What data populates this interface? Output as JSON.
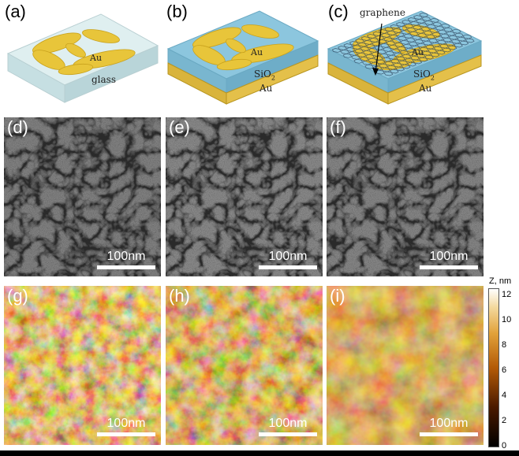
{
  "panels": {
    "a": {
      "label": "(a)",
      "substrate_label": "glass",
      "particle_label": "Au"
    },
    "b": {
      "label": "(b)",
      "particle_label": "Au",
      "layer1_label": "SiO",
      "layer1_sub": "2",
      "layer2_label": "Au"
    },
    "c": {
      "label": "(c)",
      "top_label": "graphene",
      "particle_label": "Au",
      "layer1_label": "SiO",
      "layer1_sub": "2",
      "layer2_label": "Au"
    },
    "d": {
      "label": "(d)",
      "scalebar": "100nm"
    },
    "e": {
      "label": "(e)",
      "scalebar": "100nm"
    },
    "f": {
      "label": "(f)",
      "scalebar": "100nm"
    },
    "g": {
      "label": "(g)",
      "scalebar": "100nm"
    },
    "h": {
      "label": "(h)",
      "scalebar": "100nm"
    },
    "i": {
      "label": "(i)",
      "scalebar": "100nm"
    }
  },
  "colorbar": {
    "title": "Z, nm",
    "ticks": [
      "12",
      "10",
      "8",
      "6",
      "4",
      "2",
      "0"
    ],
    "range": [
      0,
      12.5
    ]
  },
  "colors": {
    "gold": "#e8c53a",
    "glass": "#d8ecec",
    "sio2": "#8cc6de",
    "au_layer": "#e7c24a",
    "afm_dark": "#1a0a02",
    "afm_light": "#fff1d0"
  }
}
